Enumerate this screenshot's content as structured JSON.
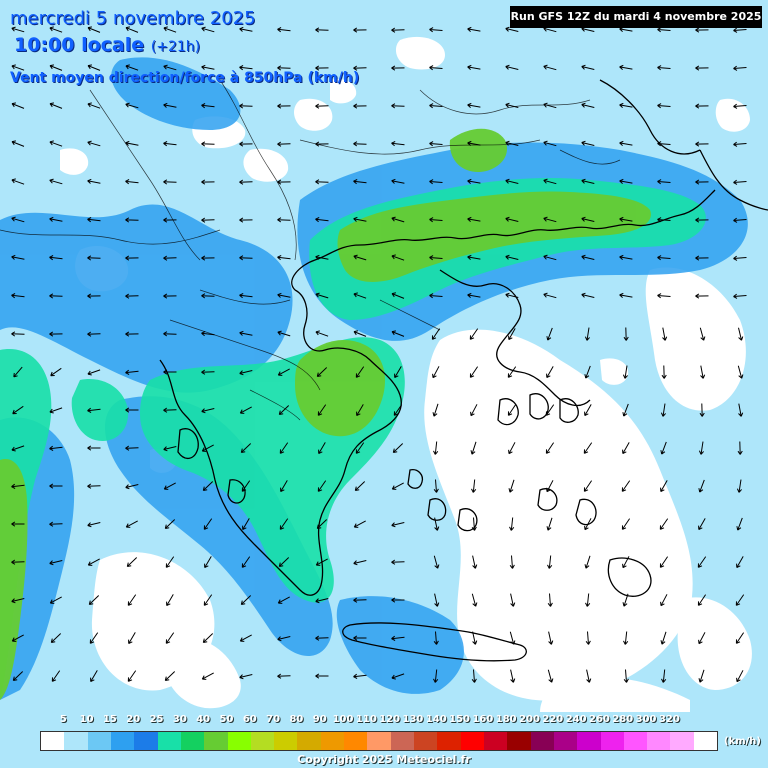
{
  "title": {
    "date": "mercredi 5 novembre 2025",
    "time": "10:00 locale",
    "step": "(+21h)",
    "parameter": "Vent moyen direction/force à 850hPa (km/h)"
  },
  "run_info": "Run GFS 12Z du mardi 4 novembre 2025",
  "legend": {
    "unit": "(km/h)",
    "ticks": [
      "5",
      "10",
      "15",
      "20",
      "25",
      "30",
      "40",
      "50",
      "60",
      "70",
      "80",
      "90",
      "100",
      "110",
      "120",
      "130",
      "140",
      "150",
      "160",
      "180",
      "200",
      "220",
      "240",
      "260",
      "280",
      "300",
      "320"
    ],
    "colors": [
      "#ffffff",
      "#aee6fa",
      "#6cc8f4",
      "#2ea0f0",
      "#1c7ce8",
      "#18e0a8",
      "#14d060",
      "#66cc33",
      "#88ff00",
      "#b4dd22",
      "#cccc00",
      "#d4aa00",
      "#ee9900",
      "#ff8800",
      "#ff9966",
      "#cc6655",
      "#cc4422",
      "#dd2200",
      "#ff0000",
      "#cc0022",
      "#990000",
      "#880055",
      "#aa0088",
      "#cc00cc",
      "#ee22ee",
      "#ff55ff",
      "#ff88ff",
      "#ffaaff",
      "#ffffff"
    ]
  },
  "copyright": "Copyright 2025 Meteociel.fr",
  "wind_field": {
    "description_colors": {
      "calm": "#ffffff",
      "light": "#aee6fa",
      "moderate": "#2ea0f0",
      "fresh": "#18e0a8",
      "strong": "#66cc33"
    }
  }
}
